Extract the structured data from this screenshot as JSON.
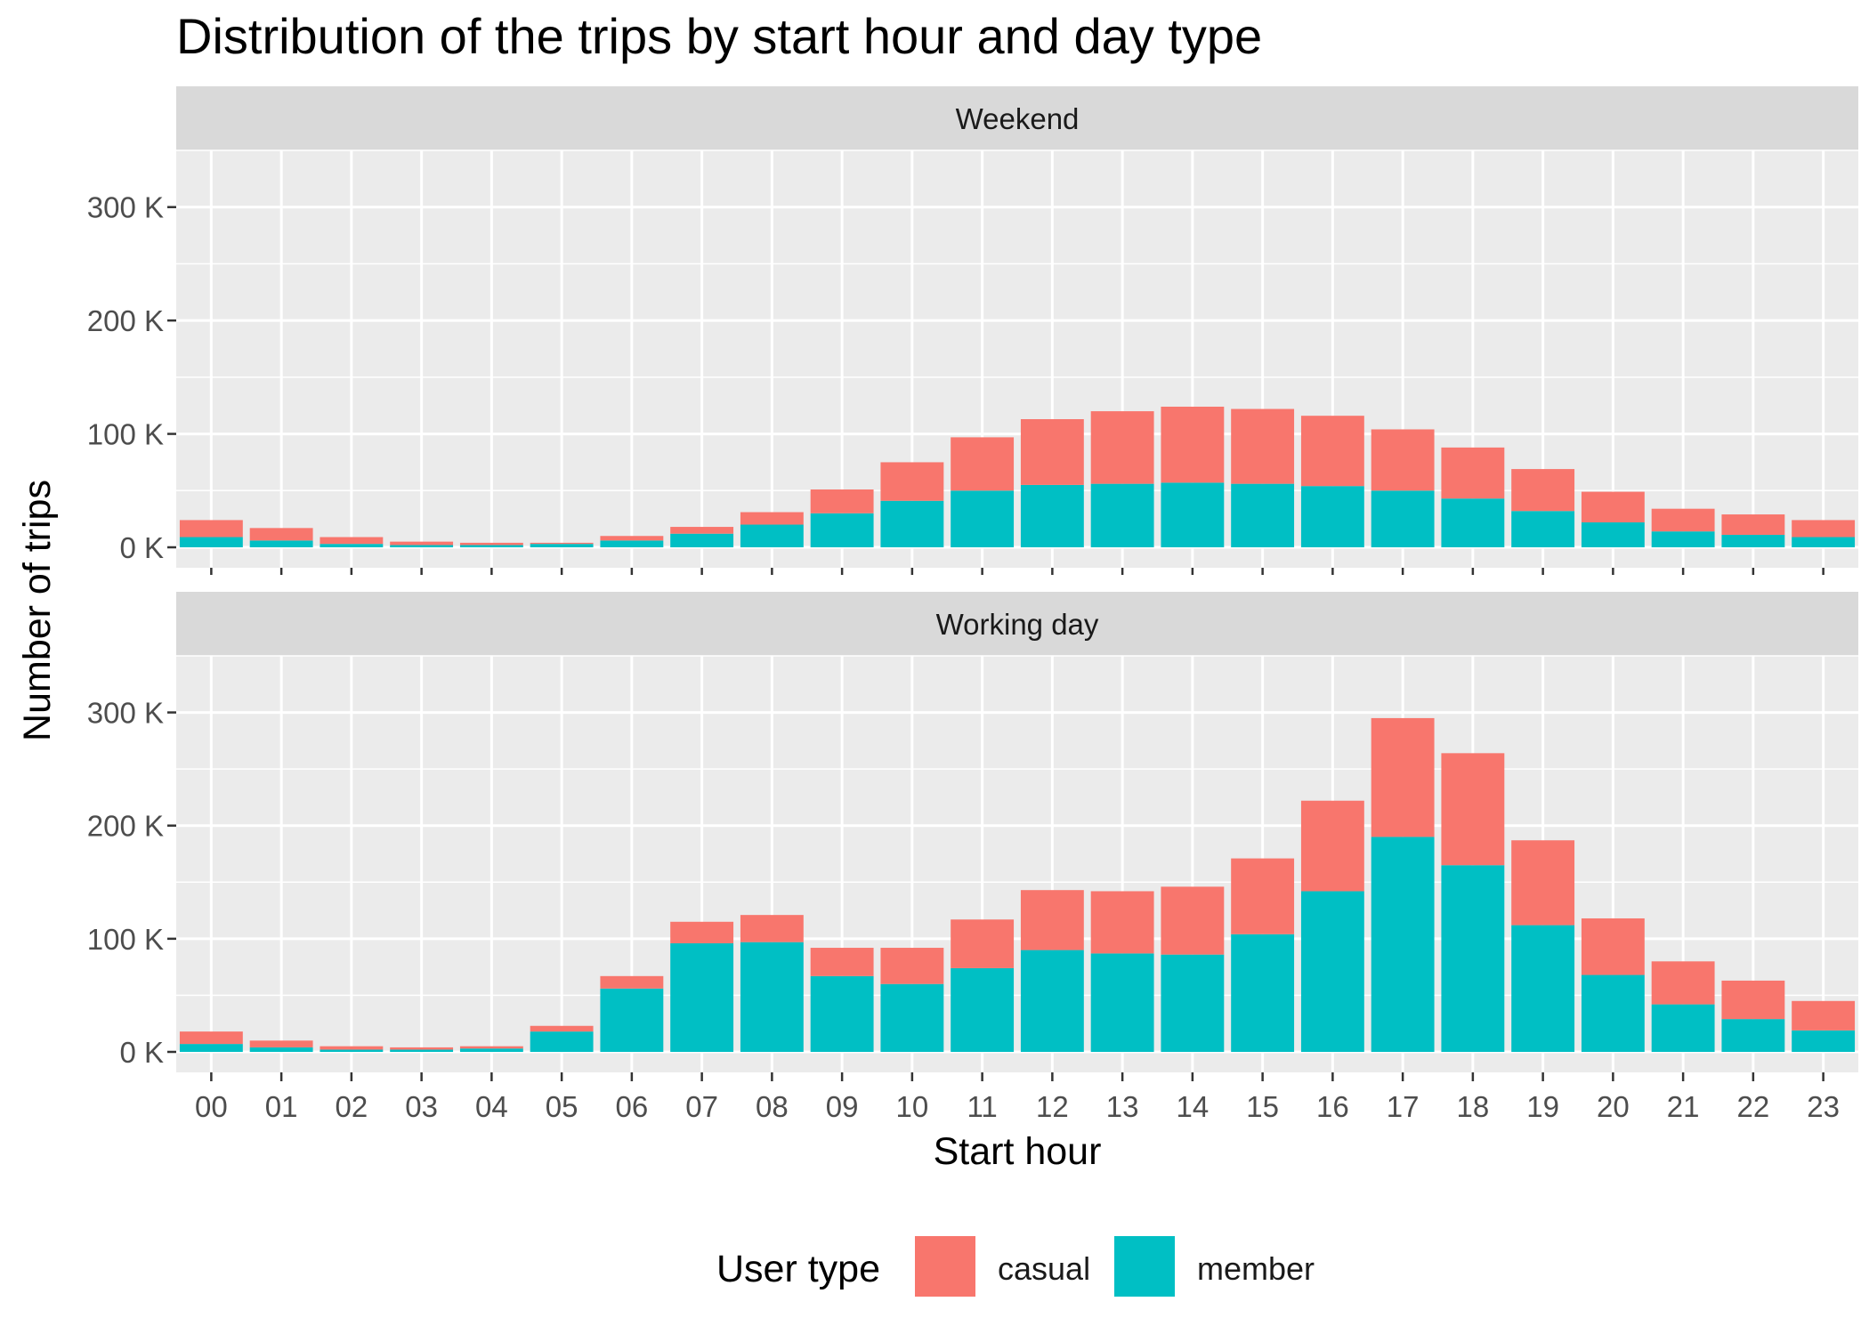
{
  "chart_data": {
    "type": "bar",
    "stacked": true,
    "title": "Distribution of the trips by start hour and day type",
    "xlabel": "Start hour",
    "ylabel": "Number of trips",
    "ylim": [
      0,
      350000
    ],
    "y_ticks": [
      0,
      100000,
      200000,
      300000
    ],
    "y_tick_labels": [
      "0 K",
      "100 K",
      "200 K",
      "300 K"
    ],
    "grid": true,
    "legend": {
      "title": "User type",
      "position": "bottom",
      "entries": [
        "casual",
        "member"
      ]
    },
    "colors": {
      "casual": "#F8766D",
      "member": "#00BFC4"
    },
    "categories": [
      "00",
      "01",
      "02",
      "03",
      "04",
      "05",
      "06",
      "07",
      "08",
      "09",
      "10",
      "11",
      "12",
      "13",
      "14",
      "15",
      "16",
      "17",
      "18",
      "19",
      "20",
      "21",
      "22",
      "23"
    ],
    "facets": [
      {
        "label": "Weekend",
        "series": [
          {
            "name": "casual",
            "values": [
              15000,
              11000,
              6000,
              3000,
              2000,
              1000,
              4000,
              6000,
              11000,
              21000,
              34000,
              47000,
              58000,
              64000,
              67000,
              66000,
              62000,
              54000,
              45000,
              37000,
              27000,
              20000,
              18000,
              15000
            ]
          },
          {
            "name": "member",
            "values": [
              9000,
              6000,
              3000,
              2000,
              2000,
              3000,
              6000,
              12000,
              20000,
              30000,
              41000,
              50000,
              55000,
              56000,
              57000,
              56000,
              54000,
              50000,
              43000,
              32000,
              22000,
              14000,
              11000,
              9000
            ]
          }
        ]
      },
      {
        "label": "Working day",
        "series": [
          {
            "name": "casual",
            "values": [
              11000,
              6000,
              3000,
              2000,
              2000,
              5000,
              11000,
              19000,
              24000,
              25000,
              32000,
              43000,
              53000,
              55000,
              60000,
              67000,
              80000,
              105000,
              99000,
              75000,
              50000,
              38000,
              34000,
              26000
            ]
          },
          {
            "name": "member",
            "values": [
              7000,
              4000,
              2000,
              2000,
              3000,
              18000,
              56000,
              96000,
              97000,
              67000,
              60000,
              74000,
              90000,
              87000,
              86000,
              104000,
              142000,
              190000,
              165000,
              112000,
              68000,
              42000,
              29000,
              19000
            ]
          }
        ]
      }
    ]
  }
}
